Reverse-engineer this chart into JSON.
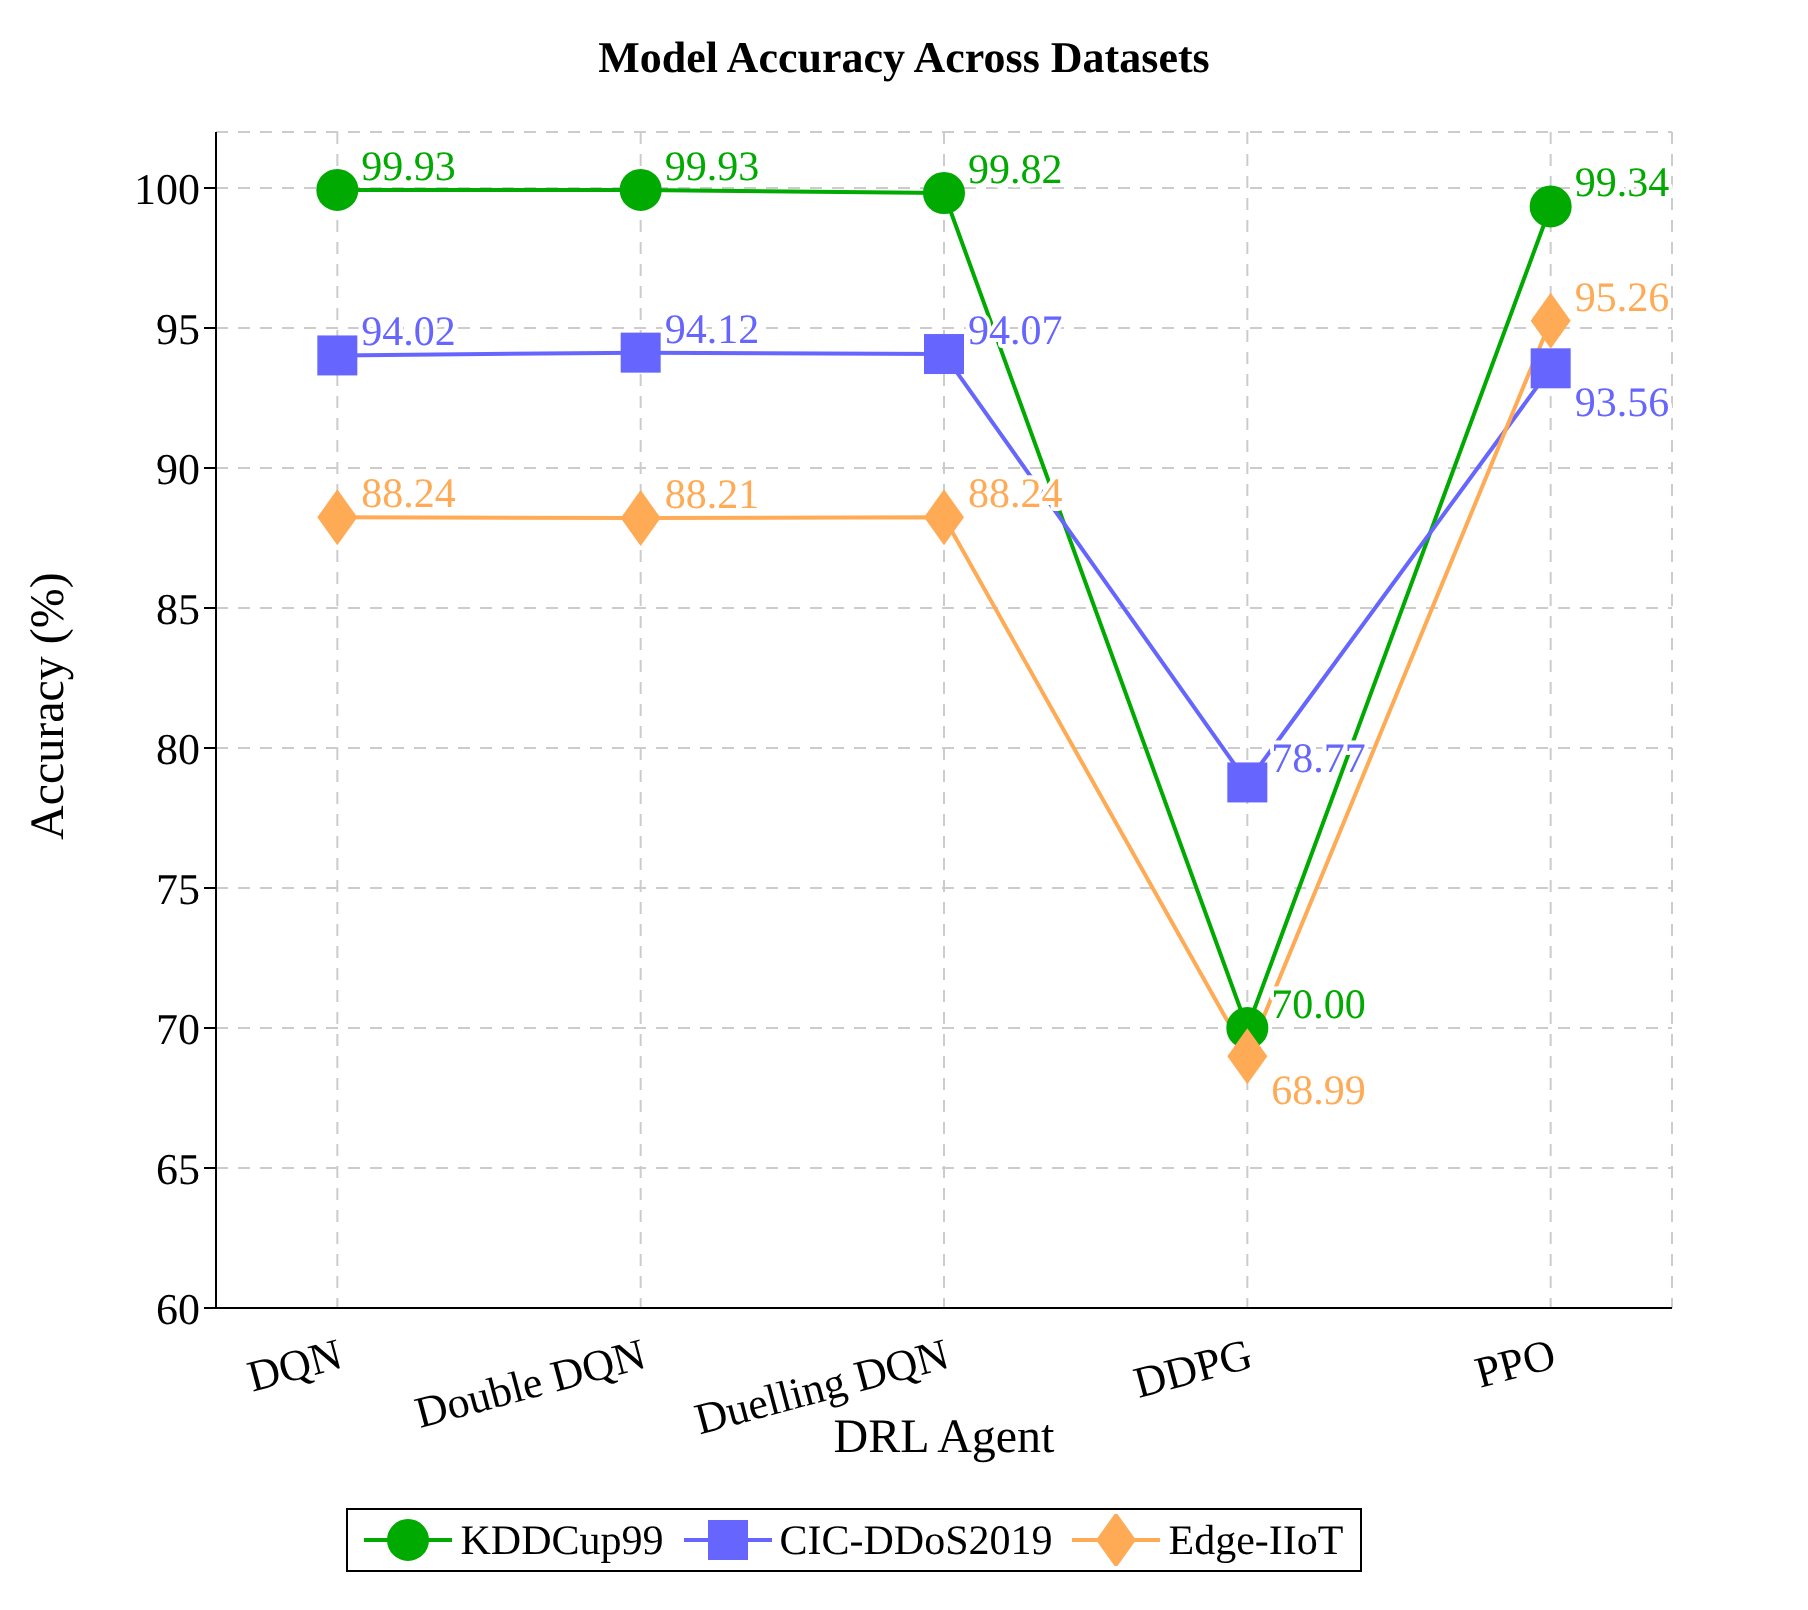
{
  "chart_data": {
    "type": "line",
    "title": "Model Accuracy Across Datasets",
    "xlabel": "DRL Agent",
    "ylabel": "Accuracy (%)",
    "categories": [
      "DQN",
      "Double DQN",
      "Duelling DQN",
      "DDPG",
      "PPO"
    ],
    "series": [
      {
        "name": "KDDCup99",
        "color": "#00aa00",
        "marker": "circle",
        "values": [
          99.93,
          99.93,
          99.82,
          70.0,
          99.34
        ],
        "value_labels": [
          "99.93",
          "99.93",
          "99.82",
          "70.00",
          "99.34"
        ]
      },
      {
        "name": "CIC-DDoS2019",
        "color": "#6666ff",
        "marker": "square",
        "values": [
          94.02,
          94.12,
          94.07,
          78.77,
          93.56
        ],
        "value_labels": [
          "94.02",
          "94.12",
          "94.07",
          "78.77",
          "93.56"
        ]
      },
      {
        "name": "Edge-IIoT",
        "color": "#ffaa55",
        "marker": "diamond",
        "values": [
          88.24,
          88.21,
          88.24,
          68.99,
          95.26
        ],
        "value_labels": [
          "88.24",
          "88.21",
          "88.24",
          "68.99",
          "95.26"
        ]
      }
    ],
    "ylim": [
      60,
      102
    ],
    "yticks": [
      60,
      65,
      70,
      75,
      80,
      85,
      90,
      95,
      100
    ],
    "grid": true,
    "legend": "bottom",
    "line_style": "solid"
  }
}
